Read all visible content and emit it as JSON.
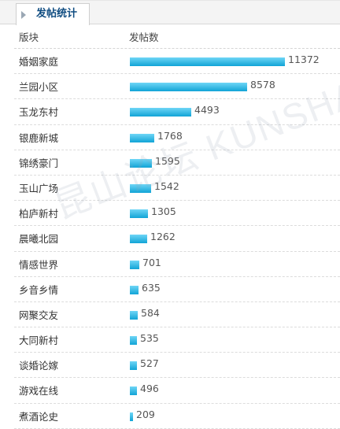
{
  "tab": {
    "label": "发帖统计"
  },
  "table": {
    "col_name": "版块",
    "col_count": "发帖数",
    "max_value": 11372,
    "rows": [
      {
        "name": "婚姻家庭",
        "value": 11372
      },
      {
        "name": "兰园小区",
        "value": 8578
      },
      {
        "name": "玉龙东村",
        "value": 4493
      },
      {
        "name": "银鹿新城",
        "value": 1768
      },
      {
        "name": "锦绣豪门",
        "value": 1595
      },
      {
        "name": "玉山广场",
        "value": 1542
      },
      {
        "name": "柏庐新村",
        "value": 1305
      },
      {
        "name": "晨曦北园",
        "value": 1262
      },
      {
        "name": "情感世界",
        "value": 701
      },
      {
        "name": "乡音乡情",
        "value": 635
      },
      {
        "name": "网聚交友",
        "value": 584
      },
      {
        "name": "大同新村",
        "value": 535
      },
      {
        "name": "谈婚论嫁",
        "value": 527
      },
      {
        "name": "游戏在线",
        "value": 496
      },
      {
        "name": "煮酒论史",
        "value": 209
      }
    ]
  },
  "watermark": "昆山论坛 KUNSHAN BBS",
  "colors": {
    "bar_top": "#6fd6f6",
    "bar_bottom": "#11a4d6",
    "tab_text": "#0f4c81"
  }
}
